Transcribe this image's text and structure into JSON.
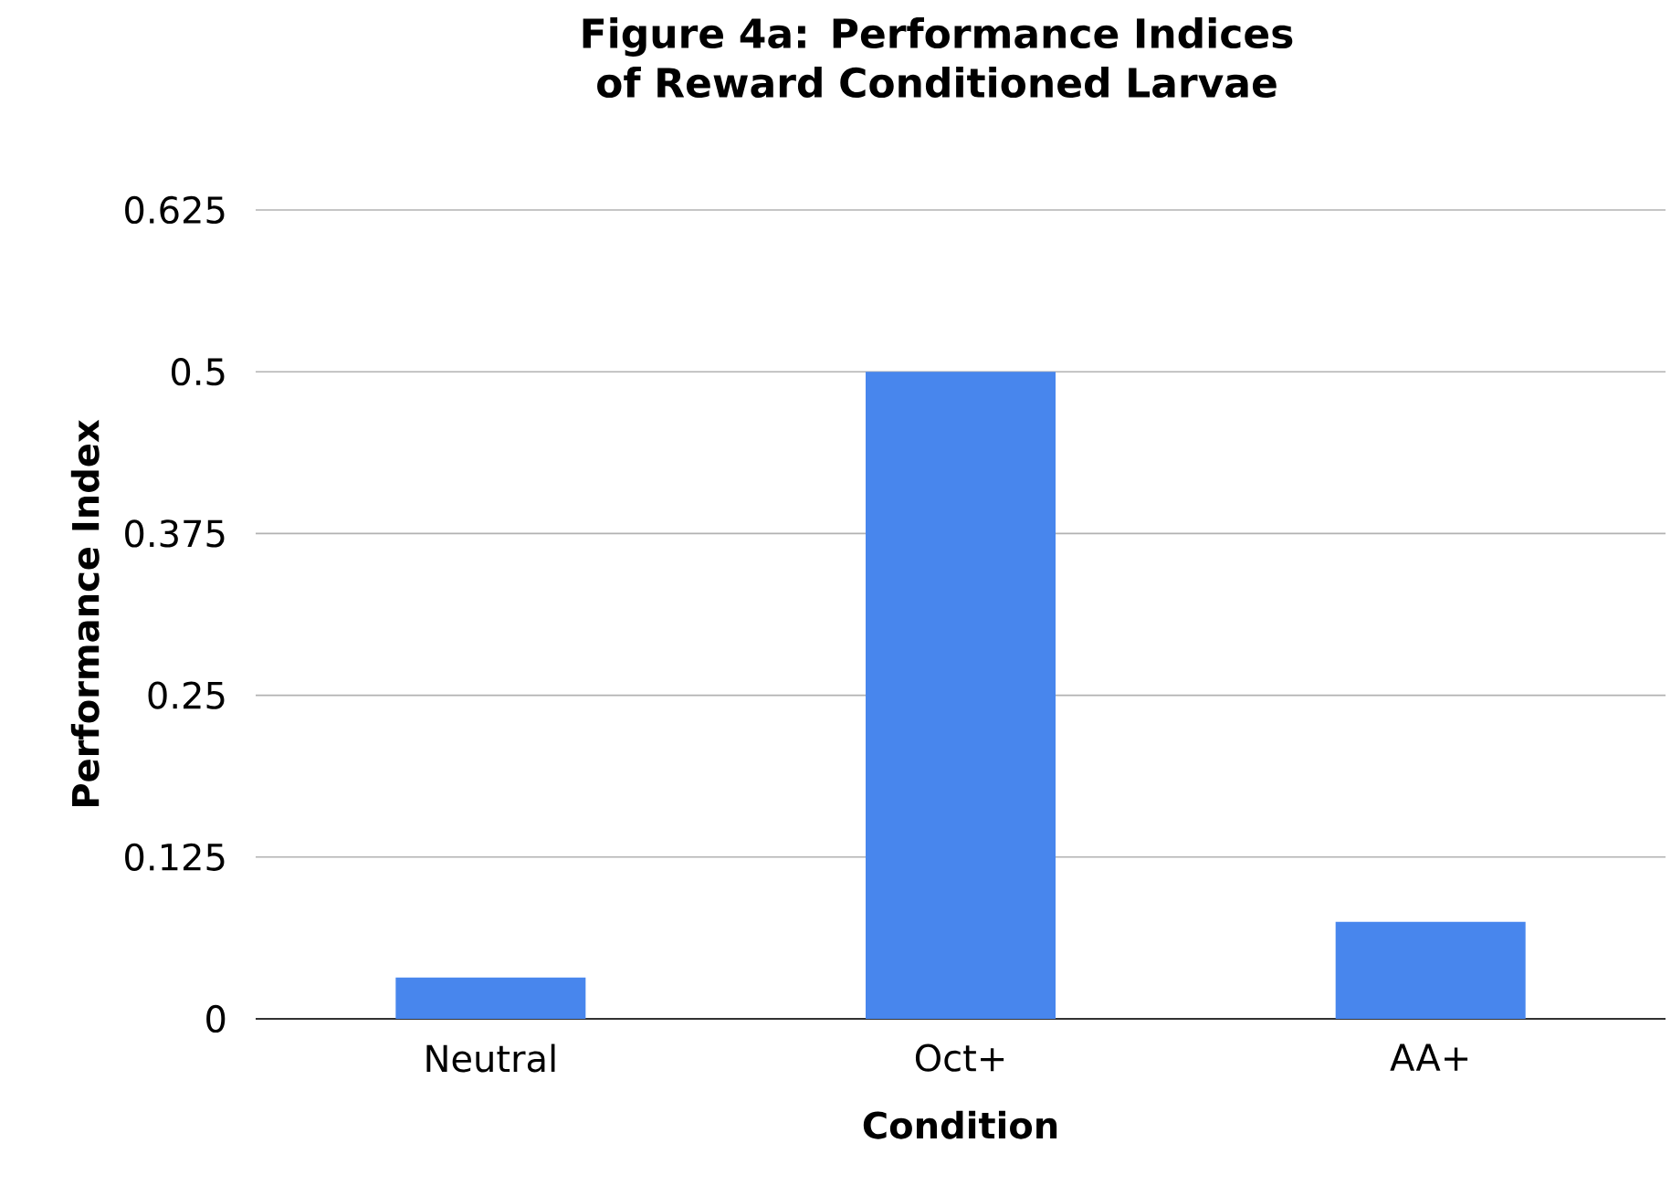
{
  "chart_data": {
    "type": "bar",
    "title": "Figure 4a: Performance Indices of Reward Conditioned Larvae",
    "xlabel": "Condition",
    "ylabel": "Performance Index",
    "categories": [
      "Neutral",
      "Oct+",
      "AA+"
    ],
    "values": [
      0.032,
      0.5,
      0.075
    ],
    "color": "#4886ed",
    "ylim": [
      0,
      0.625
    ],
    "yticks": [
      0,
      0.125,
      0.25,
      0.375,
      0.5,
      0.625
    ],
    "grid": "y"
  }
}
